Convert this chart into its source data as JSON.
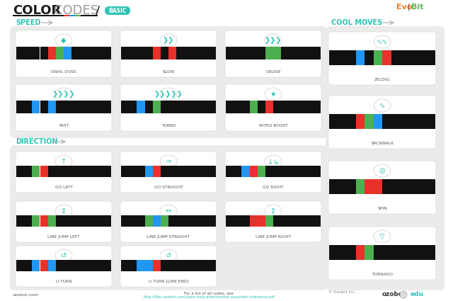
{
  "teal": "#2ec4b6",
  "orange": "#f47c20",
  "green_bright": "#5bb85c",
  "white": "#ffffff",
  "light_gray": "#ebebeb",
  "mid_gray": "#cccccc",
  "dark_gray": "#555555",
  "text_dark": "#1a1a1a",
  "text_gray": "#aaaaaa",
  "c_black": "#111111",
  "c_red": "#e8312a",
  "c_blue": "#2196F3",
  "c_green": "#4caf50",
  "speed_patterns": [
    [
      "B",
      "B",
      "B",
      "B",
      "R",
      "G",
      "U",
      "B",
      "B",
      "B",
      "B",
      "B",
      "B"
    ],
    [
      "B",
      "B",
      "B",
      "B",
      "R",
      "B",
      "R",
      "B",
      "B",
      "B",
      "B",
      "B",
      "B"
    ],
    [
      "B",
      "B",
      "B",
      "B",
      "B",
      "G",
      "G",
      "B",
      "B",
      "B",
      "B",
      "B",
      "B"
    ],
    [
      "B",
      "B",
      "U",
      "B",
      "U",
      "B",
      "B",
      "B",
      "B",
      "B",
      "B",
      "B",
      "B"
    ],
    [
      "B",
      "B",
      "U",
      "B",
      "G",
      "B",
      "B",
      "B",
      "B",
      "B",
      "B",
      "B",
      "B"
    ],
    [
      "B",
      "B",
      "B",
      "G",
      "B",
      "R",
      "B",
      "B",
      "B",
      "B",
      "B",
      "B",
      "B"
    ]
  ],
  "speed_labels": [
    "SNAIL DOSE",
    "SLOW",
    "CRUISE",
    "FAST",
    "TURBO",
    "NITRO BOOST"
  ],
  "dir_patterns": [
    [
      "B",
      "B",
      "G",
      "R",
      "B",
      "B",
      "B",
      "B",
      "B",
      "B",
      "B",
      "B",
      "B"
    ],
    [
      "B",
      "B",
      "B",
      "U",
      "R",
      "B",
      "B",
      "B",
      "B",
      "B",
      "B",
      "B",
      "B"
    ],
    [
      "B",
      "B",
      "U",
      "R",
      "G",
      "B",
      "B",
      "B",
      "B",
      "B",
      "B",
      "B",
      "B"
    ],
    [
      "B",
      "B",
      "G",
      "R",
      "G",
      "B",
      "B",
      "B",
      "B",
      "B",
      "B",
      "B",
      "B"
    ],
    [
      "B",
      "B",
      "B",
      "G",
      "U",
      "G",
      "B",
      "B",
      "B",
      "B",
      "B",
      "B",
      "B"
    ],
    [
      "B",
      "B",
      "B",
      "R",
      "R",
      "G",
      "B",
      "B",
      "B",
      "B",
      "B",
      "B",
      "B"
    ],
    [
      "B",
      "B",
      "U",
      "R",
      "U",
      "B",
      "B",
      "B",
      "B",
      "B",
      "B",
      "B",
      "B"
    ],
    [
      "B",
      "B",
      "B",
      "U",
      "U",
      "R",
      "B",
      "B",
      "B",
      "B",
      "B",
      "B",
      "B"
    ]
  ],
  "dir_labels": [
    "GO LEFT",
    "GO STRAIGHT",
    "GO RIGHT",
    "LINE JUMP LEFT",
    "LINE JUMP STRAIGHT",
    "LINE JUMP RIGHT",
    "U TURN",
    "U TURN (LINE END)"
  ],
  "cool_patterns": [
    [
      "B",
      "B",
      "B",
      "U",
      "B",
      "G",
      "R",
      "B",
      "B",
      "B",
      "B",
      "B",
      "B"
    ],
    [
      "B",
      "B",
      "B",
      "R",
      "G",
      "U",
      "B",
      "B",
      "B",
      "B",
      "B",
      "B",
      "B"
    ],
    [
      "B",
      "B",
      "B",
      "G",
      "R",
      "R",
      "B",
      "B",
      "B",
      "B",
      "B",
      "B",
      "B"
    ],
    [
      "B",
      "B",
      "B",
      "R",
      "G",
      "B",
      "B",
      "B",
      "B",
      "B",
      "B",
      "B",
      "B"
    ]
  ],
  "cool_labels": [
    "ZIGZAG",
    "BACKWALK",
    "SPIN",
    "TORNADO"
  ]
}
